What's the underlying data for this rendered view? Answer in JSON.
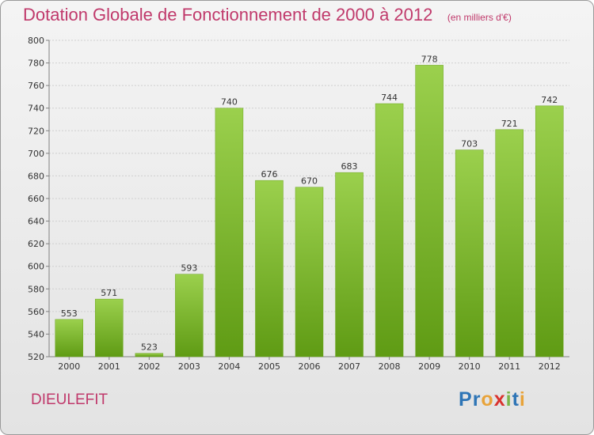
{
  "header": {
    "title": "Dotation Globale de Fonctionnement de 2000 à 2012",
    "subtitle": "(en milliers d'€)"
  },
  "commune": "DIEULEFIT",
  "logo": {
    "text": "Proxiti",
    "letter_colors": [
      "#2e75b6",
      "#2e75b6",
      "#e8a33a",
      "#d9322e",
      "#7ab648",
      "#2e75b6",
      "#e8a33a"
    ]
  },
  "colors": {
    "title": "#c0396b",
    "bar_top": "#9bd04d",
    "bar_bottom": "#5f9b14",
    "gridline": "#cfcfcf",
    "axis": "#808080",
    "text": "#333333"
  },
  "chart_data": {
    "type": "bar",
    "categories": [
      "2000",
      "2001",
      "2002",
      "2003",
      "2004",
      "2005",
      "2006",
      "2007",
      "2008",
      "2009",
      "2010",
      "2011",
      "2012"
    ],
    "values": [
      553,
      571,
      523,
      593,
      740,
      676,
      670,
      683,
      744,
      778,
      703,
      721,
      742
    ],
    "ylim": [
      520,
      800
    ],
    "yticks": [
      520,
      540,
      560,
      580,
      600,
      620,
      640,
      660,
      680,
      700,
      720,
      740,
      760,
      780,
      800
    ],
    "grid": true,
    "data_labels": true
  }
}
